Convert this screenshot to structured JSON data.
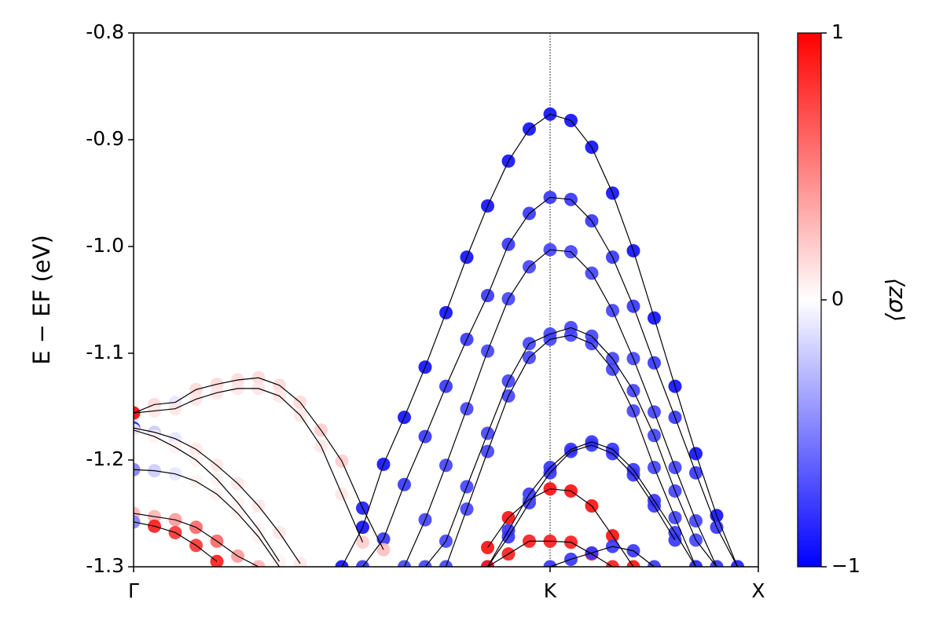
{
  "chart_data": {
    "type": "band_structure",
    "ylabel": "E − EF (eV)",
    "colorbar_label": "⟨σz⟩",
    "colormap": "bwr",
    "clim": [
      -1,
      1
    ],
    "cticks": [
      {
        "value": -1,
        "label": "−1"
      },
      0,
      1
    ],
    "line_color": "#000000",
    "x": [
      0,
      1,
      2,
      3,
      4,
      5,
      6,
      7,
      8,
      9,
      10,
      11,
      12,
      13,
      14,
      15,
      16,
      17,
      18,
      19,
      20,
      21,
      22,
      23,
      24,
      25,
      26,
      27,
      28,
      29,
      30
    ],
    "xlim": [
      0,
      30
    ],
    "xticks": [
      {
        "value": 0,
        "label": "Γ"
      },
      {
        "value": 20,
        "label": "K"
      },
      {
        "value": 30,
        "label": "X"
      }
    ],
    "ylim": [
      -1.3,
      -0.8
    ],
    "yticks": [
      -0.8,
      -0.9,
      {
        "value": -1,
        "label": "-1.0"
      },
      -1.1,
      -1.2,
      -1.3
    ],
    "series": [
      {
        "values": [
          null,
          null,
          null,
          null,
          null,
          null,
          null,
          null,
          null,
          null,
          -1.3,
          -1.263,
          -1.204,
          -1.16,
          -1.113,
          -1.062,
          -1.01,
          -0.962,
          -0.92,
          -0.89,
          -0.876,
          -0.882,
          -0.907,
          -0.95,
          -1.004,
          -1.067,
          -1.131,
          -1.194,
          -1.252,
          -1.3,
          null
        ],
        "sigma": [
          null,
          null,
          null,
          null,
          null,
          null,
          null,
          null,
          null,
          null,
          -0.95,
          -0.95,
          -0.95,
          -0.95,
          -0.95,
          -0.95,
          -0.95,
          -0.95,
          -0.95,
          -0.95,
          -0.95,
          -0.95,
          -0.95,
          -0.95,
          -0.95,
          -0.95,
          -0.95,
          -0.95,
          -0.95,
          -0.95,
          null
        ]
      },
      {
        "values": [
          null,
          null,
          null,
          null,
          null,
          null,
          null,
          null,
          null,
          null,
          null,
          -1.3,
          -1.274,
          -1.223,
          -1.178,
          -1.131,
          -1.087,
          -1.046,
          -0.998,
          -0.969,
          -0.954,
          -0.956,
          -0.976,
          -1.01,
          -1.056,
          -1.109,
          -1.16,
          -1.212,
          -1.263,
          -1.3,
          null
        ],
        "sigma": [
          null,
          null,
          null,
          null,
          null,
          null,
          null,
          null,
          null,
          null,
          null,
          -0.8,
          -0.8,
          -0.8,
          -0.8,
          -0.8,
          -0.8,
          -0.8,
          -0.8,
          -0.8,
          -0.8,
          -0.8,
          -0.8,
          -0.8,
          -0.8,
          -0.8,
          -0.8,
          -0.8,
          -0.8,
          -0.8,
          null
        ]
      },
      {
        "values": [
          null,
          null,
          null,
          null,
          null,
          null,
          null,
          null,
          null,
          null,
          null,
          null,
          null,
          -1.3,
          -1.256,
          -1.205,
          -1.152,
          -1.098,
          -1.049,
          -1.019,
          -1.003,
          -1.005,
          -1.025,
          -1.06,
          -1.105,
          -1.155,
          -1.207,
          -1.257,
          -1.3,
          null,
          null
        ],
        "sigma": [
          null,
          null,
          null,
          null,
          null,
          null,
          null,
          null,
          null,
          null,
          null,
          null,
          null,
          -0.75,
          -0.75,
          -0.75,
          -0.75,
          -0.75,
          -0.75,
          -0.75,
          -0.75,
          -0.75,
          -0.75,
          -0.75,
          -0.75,
          -0.75,
          -0.75,
          -0.75,
          -0.75,
          null,
          null
        ]
      },
      {
        "values": [
          null,
          null,
          null,
          null,
          null,
          null,
          null,
          null,
          null,
          null,
          null,
          null,
          null,
          null,
          -1.3,
          -1.276,
          -1.225,
          -1.175,
          -1.126,
          -1.091,
          -1.082,
          -1.076,
          -1.084,
          -1.105,
          -1.135,
          -1.177,
          -1.229,
          -1.275,
          -1.3,
          null,
          null
        ],
        "sigma": [
          null,
          null,
          null,
          null,
          null,
          null,
          null,
          null,
          null,
          null,
          null,
          null,
          null,
          null,
          -0.75,
          -0.75,
          -0.75,
          -0.75,
          -0.75,
          -0.75,
          -0.75,
          -0.75,
          -0.75,
          -0.75,
          -0.75,
          -0.75,
          -0.75,
          -0.75,
          -0.75,
          null,
          null
        ]
      },
      {
        "values": [
          null,
          null,
          null,
          null,
          null,
          null,
          null,
          null,
          null,
          null,
          null,
          null,
          null,
          null,
          null,
          -1.3,
          -1.246,
          -1.192,
          -1.14,
          -1.104,
          -1.087,
          -1.083,
          -1.091,
          -1.115,
          -1.154,
          -1.207,
          -1.254,
          -1.3,
          null,
          null,
          null
        ],
        "sigma": [
          null,
          null,
          null,
          null,
          null,
          null,
          null,
          null,
          null,
          null,
          null,
          null,
          null,
          null,
          null,
          -0.75,
          -0.75,
          -0.75,
          -0.75,
          -0.75,
          -0.75,
          -0.75,
          -0.75,
          -0.75,
          -0.75,
          -0.75,
          -0.75,
          -0.75,
          null,
          null,
          null
        ]
      },
      {
        "values": [
          null,
          null,
          null,
          null,
          null,
          null,
          null,
          null,
          null,
          null,
          null,
          null,
          null,
          null,
          null,
          null,
          null,
          -1.3,
          -1.266,
          -1.232,
          -1.207,
          -1.19,
          -1.183,
          -1.19,
          -1.209,
          -1.238,
          -1.268,
          -1.3,
          null,
          null,
          null
        ],
        "sigma": [
          null,
          null,
          null,
          null,
          null,
          null,
          null,
          null,
          null,
          null,
          null,
          null,
          null,
          null,
          null,
          null,
          null,
          -0.8,
          -0.8,
          -0.8,
          -0.8,
          -0.8,
          -0.8,
          -0.8,
          -0.8,
          -0.8,
          -0.8,
          -0.8,
          null,
          null,
          null
        ]
      },
      {
        "values": [
          null,
          null,
          null,
          null,
          null,
          null,
          null,
          null,
          null,
          null,
          null,
          null,
          null,
          null,
          null,
          null,
          null,
          -1.3,
          -1.272,
          -1.24,
          -1.212,
          -1.192,
          -1.186,
          -1.194,
          -1.214,
          -1.243,
          -1.275,
          null,
          null,
          null,
          null
        ],
        "sigma": [
          null,
          null,
          null,
          null,
          null,
          null,
          null,
          null,
          null,
          null,
          null,
          null,
          null,
          null,
          null,
          null,
          null,
          -0.8,
          -0.8,
          -0.8,
          -0.8,
          -0.8,
          -0.8,
          -0.8,
          -0.8,
          -0.8,
          -0.8,
          null,
          null,
          null,
          null
        ]
      },
      {
        "values": [
          null,
          null,
          null,
          null,
          null,
          null,
          null,
          null,
          null,
          null,
          null,
          null,
          null,
          null,
          null,
          null,
          null,
          -1.282,
          -1.254,
          -1.237,
          -1.227,
          -1.229,
          -1.243,
          -1.271,
          -1.3,
          null,
          null,
          null,
          null,
          null,
          null
        ],
        "sigma": [
          null,
          null,
          null,
          null,
          null,
          null,
          null,
          null,
          null,
          null,
          null,
          null,
          null,
          null,
          null,
          null,
          null,
          0.95,
          0.95,
          -0.7,
          0.95,
          0.95,
          0.95,
          0.95,
          0.95,
          null,
          null,
          null,
          null,
          null,
          null
        ]
      },
      {
        "values": [
          null,
          null,
          null,
          null,
          null,
          null,
          null,
          null,
          null,
          null,
          null,
          null,
          null,
          null,
          null,
          null,
          null,
          -1.3,
          -1.288,
          -1.276,
          -1.276,
          -1.277,
          -1.288,
          -1.3,
          null,
          null,
          null,
          null,
          null,
          null,
          null
        ],
        "sigma": [
          null,
          null,
          null,
          null,
          null,
          null,
          null,
          null,
          null,
          null,
          null,
          null,
          null,
          null,
          null,
          null,
          null,
          0.9,
          0.9,
          0.9,
          0.9,
          0.9,
          0.9,
          0.9,
          null,
          null,
          null,
          null,
          null,
          null,
          null
        ]
      },
      {
        "values": [
          null,
          null,
          null,
          null,
          null,
          null,
          null,
          null,
          null,
          null,
          null,
          null,
          null,
          null,
          null,
          null,
          null,
          null,
          null,
          null,
          -1.3,
          -1.293,
          -1.287,
          -1.281,
          -1.285,
          -1.3,
          null,
          null,
          null,
          null,
          null
        ],
        "sigma": [
          null,
          null,
          null,
          null,
          null,
          null,
          null,
          null,
          null,
          null,
          null,
          null,
          null,
          null,
          null,
          null,
          null,
          null,
          null,
          null,
          -0.8,
          -0.8,
          -0.8,
          -0.8,
          -0.8,
          -0.8,
          null,
          null,
          null,
          null,
          null
        ]
      },
      {
        "values": [
          -1.156,
          -1.148,
          -1.146,
          -1.134,
          -1.129,
          -1.125,
          -1.123,
          -1.13,
          -1.146,
          -1.172,
          -1.201,
          -1.245,
          -1.284,
          null,
          null,
          null,
          null,
          null,
          null,
          null,
          null,
          null,
          null,
          null,
          null,
          null,
          null,
          null,
          null,
          null,
          null
        ],
        "sigma": [
          0.9,
          0.15,
          -0.1,
          0.15,
          0.15,
          0.15,
          0.15,
          0.15,
          0.15,
          0.2,
          0.2,
          -0.9,
          0.25,
          null,
          null,
          null,
          null,
          null,
          null,
          null,
          null,
          null,
          null,
          null,
          null,
          null,
          null,
          null,
          null,
          null,
          null
        ]
      },
      {
        "values": [
          -1.156,
          -1.154,
          -1.152,
          -1.143,
          -1.137,
          -1.133,
          -1.133,
          -1.14,
          -1.158,
          -1.187,
          -1.232,
          -1.277,
          null,
          null,
          null,
          null,
          null,
          null,
          null,
          null,
          null,
          null,
          null,
          null,
          null,
          null,
          null,
          null,
          null,
          null,
          null
        ],
        "sigma": [
          0.9,
          0.1,
          0.1,
          0.1,
          0.1,
          0.1,
          0.1,
          0.1,
          0.1,
          0.1,
          0.1,
          0.2,
          null,
          null,
          null,
          null,
          null,
          null,
          null,
          null,
          null,
          null,
          null,
          null,
          null,
          null,
          null,
          null,
          null,
          null,
          null
        ]
      },
      {
        "values": [
          -1.17,
          -1.174,
          -1.18,
          -1.19,
          -1.205,
          -1.222,
          -1.243,
          -1.268,
          -1.297,
          null,
          null,
          null,
          null,
          null,
          null,
          null,
          null,
          null,
          null,
          null,
          null,
          null,
          null,
          null,
          null,
          null,
          null,
          null,
          null,
          null,
          null
        ],
        "sigma": [
          -0.9,
          -0.2,
          -0.1,
          0.1,
          0.1,
          0.1,
          0.1,
          0.1,
          0.1,
          null,
          null,
          null,
          null,
          null,
          null,
          null,
          null,
          null,
          null,
          null,
          null,
          null,
          null,
          null,
          null,
          null,
          null,
          null,
          null,
          null,
          null
        ]
      },
      {
        "values": [
          -1.172,
          -1.178,
          -1.188,
          -1.2,
          -1.218,
          -1.24,
          -1.265,
          -1.295,
          null,
          null,
          null,
          null,
          null,
          null,
          null,
          null,
          null,
          null,
          null,
          null,
          null,
          null,
          null,
          null,
          null,
          null,
          null,
          null,
          null,
          null,
          null
        ],
        "sigma": [
          0.05,
          0.05,
          0.05,
          0.05,
          0.05,
          0.05,
          0.05,
          0.05,
          null,
          null,
          null,
          null,
          null,
          null,
          null,
          null,
          null,
          null,
          null,
          null,
          null,
          null,
          null,
          null,
          null,
          null,
          null,
          null,
          null,
          null,
          null
        ]
      },
      {
        "values": [
          -1.209,
          -1.21,
          -1.213,
          -1.22,
          -1.232,
          -1.25,
          -1.272,
          -1.3,
          null,
          null,
          null,
          null,
          null,
          null,
          null,
          null,
          null,
          null,
          null,
          null,
          null,
          null,
          null,
          null,
          null,
          null,
          null,
          null,
          null,
          null,
          null
        ],
        "sigma": [
          -0.5,
          -0.2,
          -0.1,
          0.05,
          0.05,
          0.05,
          0.05,
          0.05,
          null,
          null,
          null,
          null,
          null,
          null,
          null,
          null,
          null,
          null,
          null,
          null,
          null,
          null,
          null,
          null,
          null,
          null,
          null,
          null,
          null,
          null,
          null
        ]
      },
      {
        "values": [
          -1.25,
          -1.253,
          -1.256,
          -1.263,
          -1.276,
          -1.29,
          -1.3,
          null,
          null,
          null,
          null,
          null,
          null,
          null,
          null,
          null,
          null,
          null,
          null,
          null,
          null,
          null,
          null,
          null,
          null,
          null,
          null,
          null,
          null,
          null,
          null
        ],
        "sigma": [
          0.3,
          0.3,
          0.4,
          0.6,
          0.6,
          0.4,
          0.3,
          null,
          null,
          null,
          null,
          null,
          null,
          null,
          null,
          null,
          null,
          null,
          null,
          null,
          null,
          null,
          null,
          null,
          null,
          null,
          null,
          null,
          null,
          null,
          null
        ]
      },
      {
        "values": [
          -1.258,
          -1.262,
          -1.268,
          -1.28,
          -1.295,
          null,
          null,
          null,
          null,
          null,
          null,
          null,
          null,
          null,
          null,
          null,
          null,
          null,
          null,
          null,
          null,
          null,
          null,
          null,
          null,
          null,
          null,
          null,
          null,
          null,
          null
        ],
        "sigma": [
          -0.5,
          0.9,
          0.8,
          0.8,
          0.9,
          null,
          null,
          null,
          null,
          null,
          null,
          null,
          null,
          null,
          null,
          null,
          null,
          null,
          null,
          null,
          null,
          null,
          null,
          null,
          null,
          null,
          null,
          null,
          null,
          null,
          null
        ]
      }
    ]
  }
}
